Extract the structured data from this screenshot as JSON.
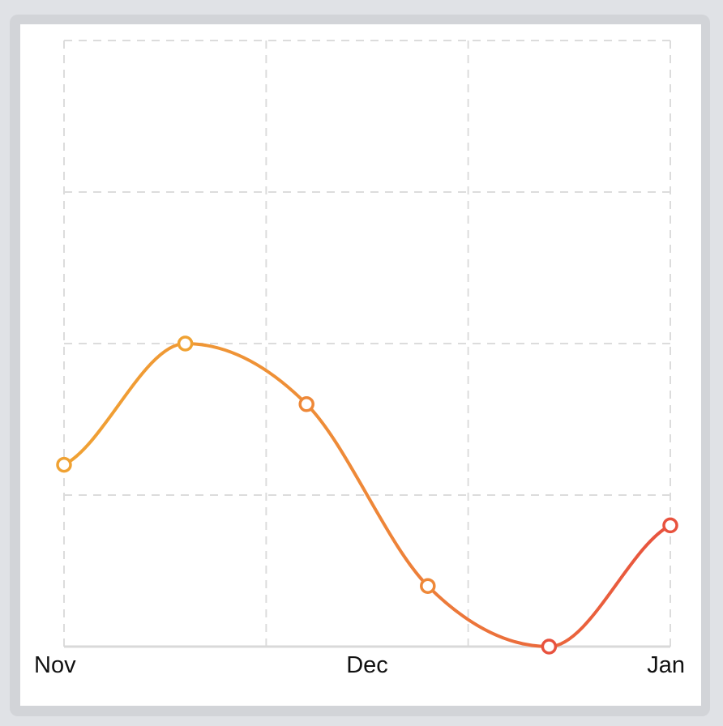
{
  "chart_data": {
    "type": "line",
    "title": "",
    "xlabel": "",
    "ylabel": "",
    "x_tick_labels": [
      "Nov",
      "Dec",
      "Jan"
    ],
    "x_tick_positions": [
      0,
      2.5,
      5
    ],
    "x": [
      0,
      1,
      2,
      3,
      4,
      5
    ],
    "series": [
      {
        "values": [
          1.2,
          2.0,
          1.6,
          0.4,
          0.0,
          0.8
        ]
      }
    ],
    "ylim": [
      0,
      4
    ],
    "y_gridlines": [
      0,
      1,
      2,
      3,
      4
    ],
    "x_gridlines": [
      0,
      1.667,
      3.333,
      5
    ],
    "grid": true,
    "smooth": true,
    "gradient": [
      "#f0a233",
      "#ee8838",
      "#e8523e"
    ],
    "marker_fill": "#ffffff",
    "axis_color": "#d9d9d9",
    "grid_color": "#dcdcdc"
  }
}
